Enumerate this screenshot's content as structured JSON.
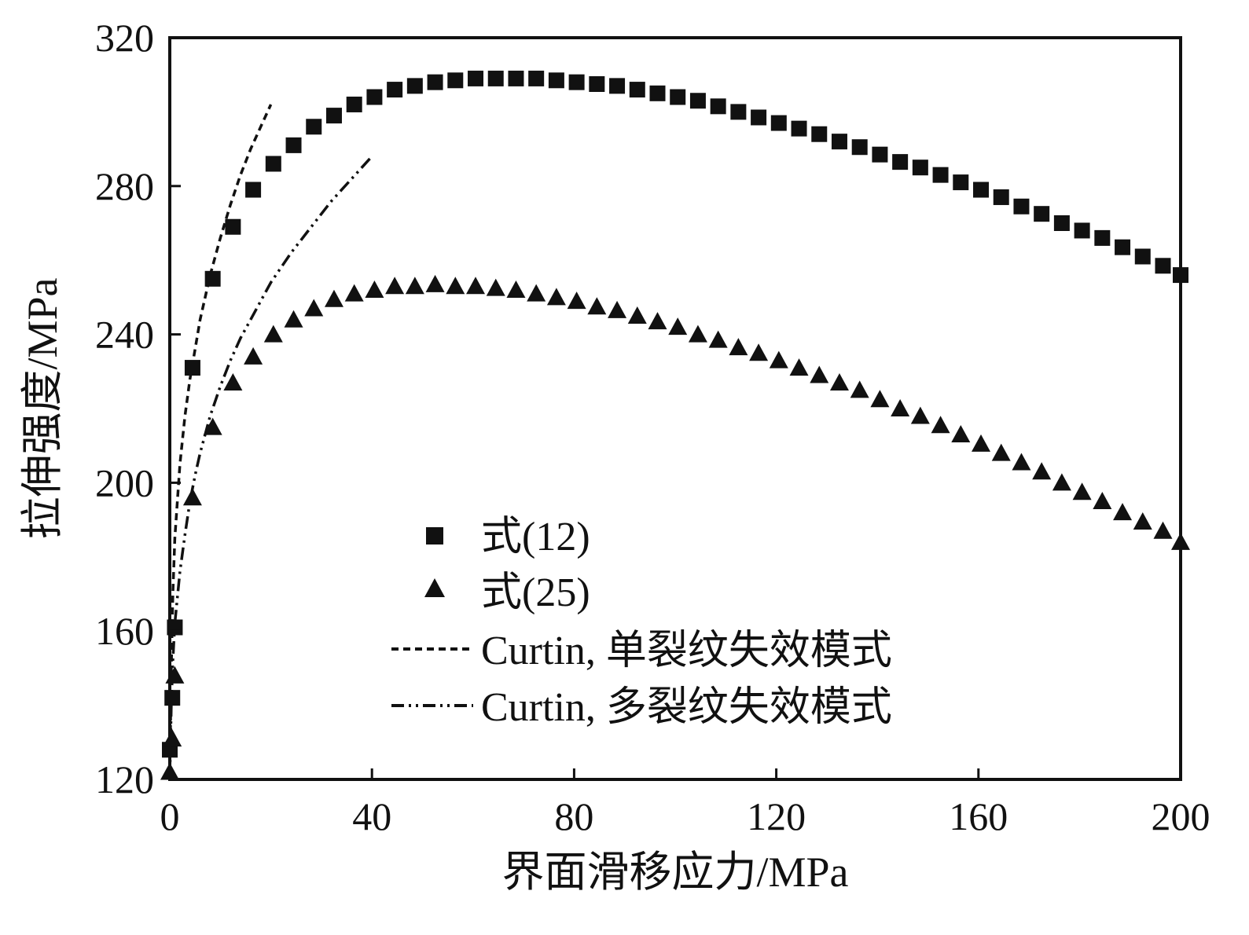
{
  "chart_data": {
    "type": "scatter",
    "xlabel": "界面滑移应力/MPa",
    "ylabel": "拉伸强度/MPa",
    "xlim": [
      0,
      200
    ],
    "ylim": [
      120,
      320
    ],
    "xticks": [
      "0",
      "40",
      "80",
      "120",
      "160",
      "200"
    ],
    "yticks": [
      "120",
      "160",
      "200",
      "240",
      "280",
      "320"
    ],
    "grid": false,
    "legend_position": "lower-center",
    "series": [
      {
        "name": "式(12)",
        "marker": "square",
        "color": "#111111",
        "x": [
          0,
          0.5,
          1,
          4.5,
          8.5,
          12.5,
          16.5,
          20.5,
          24.5,
          28.5,
          32.5,
          36.5,
          40.5,
          44.5,
          48.5,
          52.5,
          56.5,
          60.5,
          64.5,
          68.5,
          72.5,
          76.5,
          80.5,
          84.5,
          88.5,
          92.5,
          96.5,
          100.5,
          104.5,
          108.5,
          112.5,
          116.5,
          120.5,
          124.5,
          128.5,
          132.5,
          136.5,
          140.5,
          144.5,
          148.5,
          152.5,
          156.5,
          160.5,
          164.5,
          168.5,
          172.5,
          176.5,
          180.5,
          184.5,
          188.5,
          192.5,
          196.5,
          200
        ],
        "y": [
          128,
          142,
          161,
          231,
          255,
          269,
          279,
          286,
          291,
          296,
          299,
          302,
          304,
          306,
          307,
          308,
          308.5,
          309,
          309,
          309,
          309,
          308.5,
          308,
          307.5,
          307,
          306,
          305,
          304,
          303,
          301.5,
          300,
          298.5,
          297,
          295.5,
          294,
          292,
          290.5,
          288.5,
          286.5,
          285,
          283,
          281,
          279,
          277,
          274.5,
          272.5,
          270,
          268,
          266,
          263.5,
          261,
          258.5,
          256
        ]
      },
      {
        "name": "式(25)",
        "marker": "triangle",
        "color": "#111111",
        "x": [
          0,
          0.5,
          1,
          4.5,
          8.5,
          12.5,
          16.5,
          20.5,
          24.5,
          28.5,
          32.5,
          36.5,
          40.5,
          44.5,
          48.5,
          52.5,
          56.5,
          60.5,
          64.5,
          68.5,
          72.5,
          76.5,
          80.5,
          84.5,
          88.5,
          92.5,
          96.5,
          100.5,
          104.5,
          108.5,
          112.5,
          116.5,
          120.5,
          124.5,
          128.5,
          132.5,
          136.5,
          140.5,
          144.5,
          148.5,
          152.5,
          156.5,
          160.5,
          164.5,
          168.5,
          172.5,
          176.5,
          180.5,
          184.5,
          188.5,
          192.5,
          196.5,
          200
        ],
        "y": [
          122,
          131,
          148,
          196,
          215,
          227,
          234,
          240,
          244,
          247,
          249.5,
          251,
          252,
          253,
          253,
          253.5,
          253,
          253,
          252.5,
          252,
          251,
          250,
          249,
          247.5,
          246.5,
          245,
          243.5,
          242,
          240,
          238.5,
          236.5,
          235,
          233,
          231,
          229,
          227,
          225,
          222.5,
          220,
          218,
          215.5,
          213,
          210.5,
          208,
          205.5,
          203,
          200,
          197.5,
          195,
          192,
          189.5,
          187,
          184
        ]
      },
      {
        "name": "Curtin, 单裂纹失效模式",
        "line_style": "dashed",
        "color": "#111111",
        "x": [
          0,
          0.3,
          0.6,
          1,
          2,
          3,
          4,
          5,
          6,
          8,
          10,
          12,
          14,
          16,
          18,
          20
        ],
        "y": [
          120,
          150,
          170,
          185,
          205,
          218,
          228,
          236,
          244,
          256,
          266,
          275,
          283,
          290,
          296,
          302
        ]
      },
      {
        "name": "Curtin, 多裂纹失效模式",
        "line_style": "dash-dot-dot",
        "color": "#111111",
        "x": [
          0,
          0.3,
          0.6,
          1,
          2,
          3,
          4,
          5,
          6,
          8,
          10,
          12,
          14,
          16,
          18,
          20,
          24,
          28,
          32,
          36,
          40
        ],
        "y": [
          120,
          140,
          152,
          162,
          176,
          186,
          195,
          202,
          208,
          218,
          226,
          233,
          239,
          244,
          249,
          254,
          262,
          269,
          276,
          282,
          288
        ]
      }
    ]
  }
}
